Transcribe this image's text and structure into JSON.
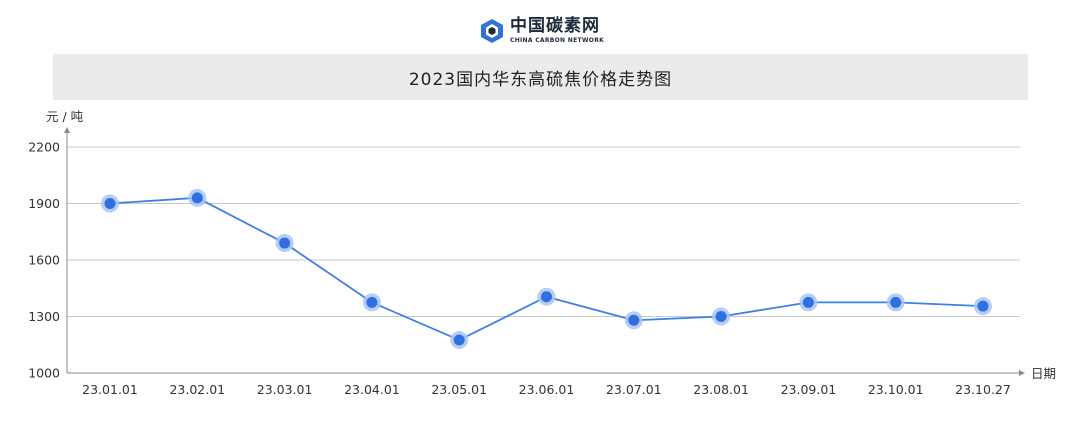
{
  "brand": {
    "name_cn": "中国碳素网",
    "name_en": "CHINA CARBON NETWORK"
  },
  "colors": {
    "line": "#3d7fe8",
    "point": "#2f6fe0",
    "halo": "#a9c6f5",
    "title_bg": "#ebebeb"
  },
  "chart_data": {
    "type": "line",
    "title": "2023国内华东高硫焦价格走势图",
    "ylabel": "元 / 吨",
    "xlabel": "日期",
    "categories": [
      "23.01.01",
      "23.02.01",
      "23.03.01",
      "23.04.01",
      "23.05.01",
      "23.06.01",
      "23.07.01",
      "23.08.01",
      "23.09.01",
      "23.10.01",
      "23.10.27"
    ],
    "values": [
      1900,
      1930,
      1690,
      1375,
      1175,
      1405,
      1280,
      1300,
      1375,
      1375,
      1355
    ],
    "ylim": [
      1000,
      2200
    ],
    "yticks": [
      "1000",
      "1300",
      "1600",
      "1900",
      "2200"
    ],
    "grid": true
  }
}
